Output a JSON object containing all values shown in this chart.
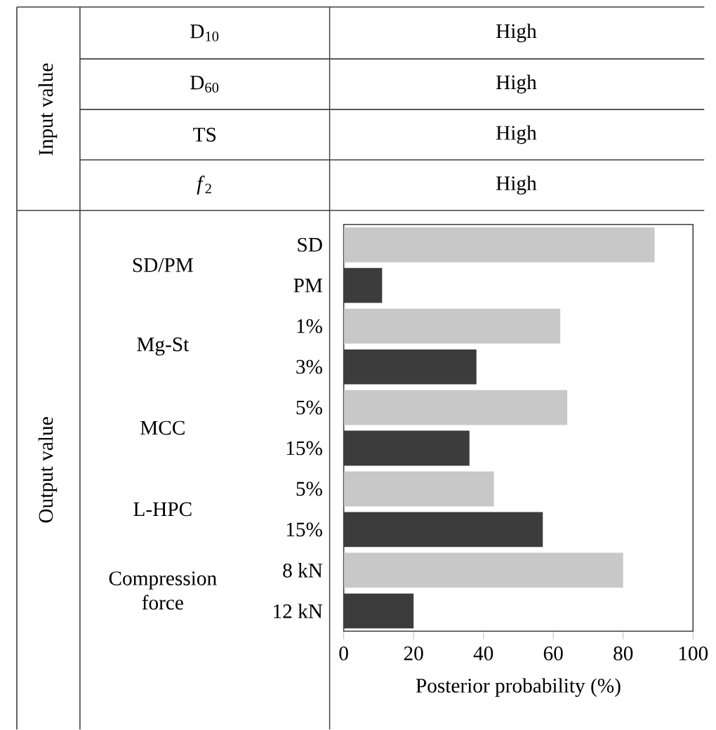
{
  "chart_data": {
    "type": "bar",
    "orientation": "horizontal",
    "categories": [
      "SD",
      "PM",
      "1%",
      "3%",
      "5%",
      "15%",
      "5%",
      "15%",
      "8 kN",
      "12 kN"
    ],
    "values": [
      89,
      11,
      62,
      38,
      64,
      36,
      43,
      57,
      80,
      20
    ],
    "colors": [
      "#c8c8c8",
      "#3c3c3c",
      "#c8c8c8",
      "#3c3c3c",
      "#c8c8c8",
      "#3c3c3c",
      "#c8c8c8",
      "#3c3c3c",
      "#c8c8c8",
      "#3c3c3c"
    ],
    "xlim": [
      0,
      100
    ],
    "xticks": [
      0,
      20,
      40,
      60,
      80,
      100
    ],
    "xlabel": "Posterior probability (%)",
    "annotations": [
      "Input value",
      "D$_{10}$",
      "High",
      "D$_{60}$",
      "High",
      "TS",
      "High",
      "*f*$_{2}$",
      "High",
      "Output value",
      "SD/PM",
      "Mg-St",
      "MCC",
      "L-HPC",
      "Compression force"
    ]
  }
}
